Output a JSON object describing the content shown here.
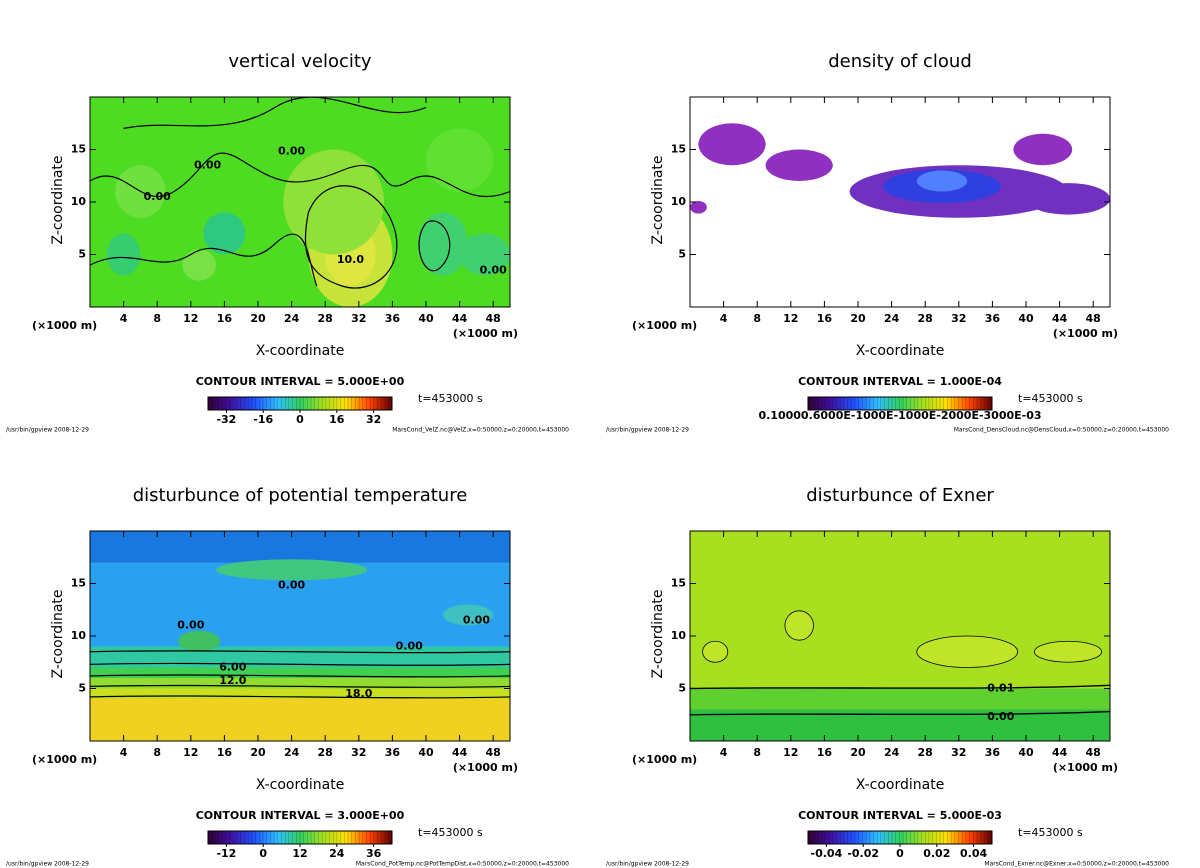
{
  "chart_data": [
    {
      "type": "contour",
      "title": "vertical velocity",
      "xlabel": "X-coordinate",
      "ylabel": "Z-coordinate",
      "x_unit": "(×1000 m)",
      "xlim": [
        0,
        50
      ],
      "xticks": [
        4,
        8,
        12,
        16,
        20,
        24,
        28,
        32,
        36,
        40,
        44,
        48
      ],
      "ylim": [
        0,
        20
      ],
      "yticks": [
        5,
        10,
        15
      ],
      "contour_interval": "CONTOUR INTERVAL = 5.000E+00",
      "colorbar_lim": [
        -40,
        40
      ],
      "colorbar_ticks": [
        -32,
        -16,
        0,
        16,
        32
      ],
      "time": "t=453000 s",
      "footer_left": "/usr/bin/gpview  2008-12-29",
      "footer_right": "MarsCond_VelZ.nc@VelZ,x=0:50000,z=0:20000,t=453000",
      "annotations": [
        "0.00",
        "0.00",
        "0.00",
        "10.0",
        "0.00"
      ]
    },
    {
      "type": "contour",
      "title": "density of cloud",
      "xlabel": "X-coordinate",
      "ylabel": "Z-coordinate",
      "x_unit": "(×1000 m)",
      "xlim": [
        0,
        50
      ],
      "xticks": [
        4,
        8,
        12,
        16,
        20,
        24,
        28,
        32,
        36,
        40,
        44,
        48
      ],
      "ylim": [
        0,
        20
      ],
      "yticks": [
        5,
        10,
        15
      ],
      "contour_interval": "CONTOUR INTERVAL = 1.000E-04",
      "colorbar_label": "0.10000.6000E-1000E-1000E-2000E-3000E-03",
      "time": "t=453000 s",
      "footer_left": "/usr/bin/gpview  2008-12-29",
      "footer_right": "MarsCond_DensCloud.nc@DensCloud,x=0:50000,z=0:20000,t=453000",
      "annotations": []
    },
    {
      "type": "contour",
      "title": "disturbunce of potential temperature",
      "xlabel": "X-coordinate",
      "ylabel": "Z-coordinate",
      "x_unit": "(×1000 m)",
      "xlim": [
        0,
        50
      ],
      "xticks": [
        4,
        8,
        12,
        16,
        20,
        24,
        28,
        32,
        36,
        40,
        44,
        48
      ],
      "ylim": [
        0,
        20
      ],
      "yticks": [
        5,
        10,
        15
      ],
      "contour_interval": "CONTOUR INTERVAL = 3.000E+00",
      "colorbar_lim": [
        -18,
        42
      ],
      "colorbar_ticks": [
        -12,
        0,
        12,
        24,
        36
      ],
      "time": "t=453000 s",
      "footer_left": "/usr/bin/gpview  2008-12-29",
      "footer_right": "MarsCond_PotTemp.nc@PotTempDist,x=0:50000,z=0:20000,t=453000",
      "annotations": [
        "0.00",
        "0.00",
        "0.00",
        "0.00",
        "6.00",
        "12.0",
        "18.0"
      ]
    },
    {
      "type": "contour",
      "title": "disturbunce of Exner",
      "xlabel": "X-coordinate",
      "ylabel": "Z-coordinate",
      "x_unit": "(×1000 m)",
      "xlim": [
        0,
        50
      ],
      "xticks": [
        4,
        8,
        12,
        16,
        20,
        24,
        28,
        32,
        36,
        40,
        44,
        48
      ],
      "ylim": [
        0,
        20
      ],
      "yticks": [
        5,
        10,
        15
      ],
      "contour_interval": "CONTOUR INTERVAL = 5.000E-03",
      "colorbar_lim": [
        -0.05,
        0.05
      ],
      "colorbar_ticks": [
        -0.04,
        -0.02,
        0,
        0.02,
        0.04
      ],
      "time": "t=453000 s",
      "footer_left": "/usr/bin/gpview  2008-12-29",
      "footer_right": "MarsCond_Exner.nc@Exner,x=0:50000,z=0:20000,t=453000",
      "annotations": [
        "0.01",
        "0.00"
      ]
    }
  ]
}
